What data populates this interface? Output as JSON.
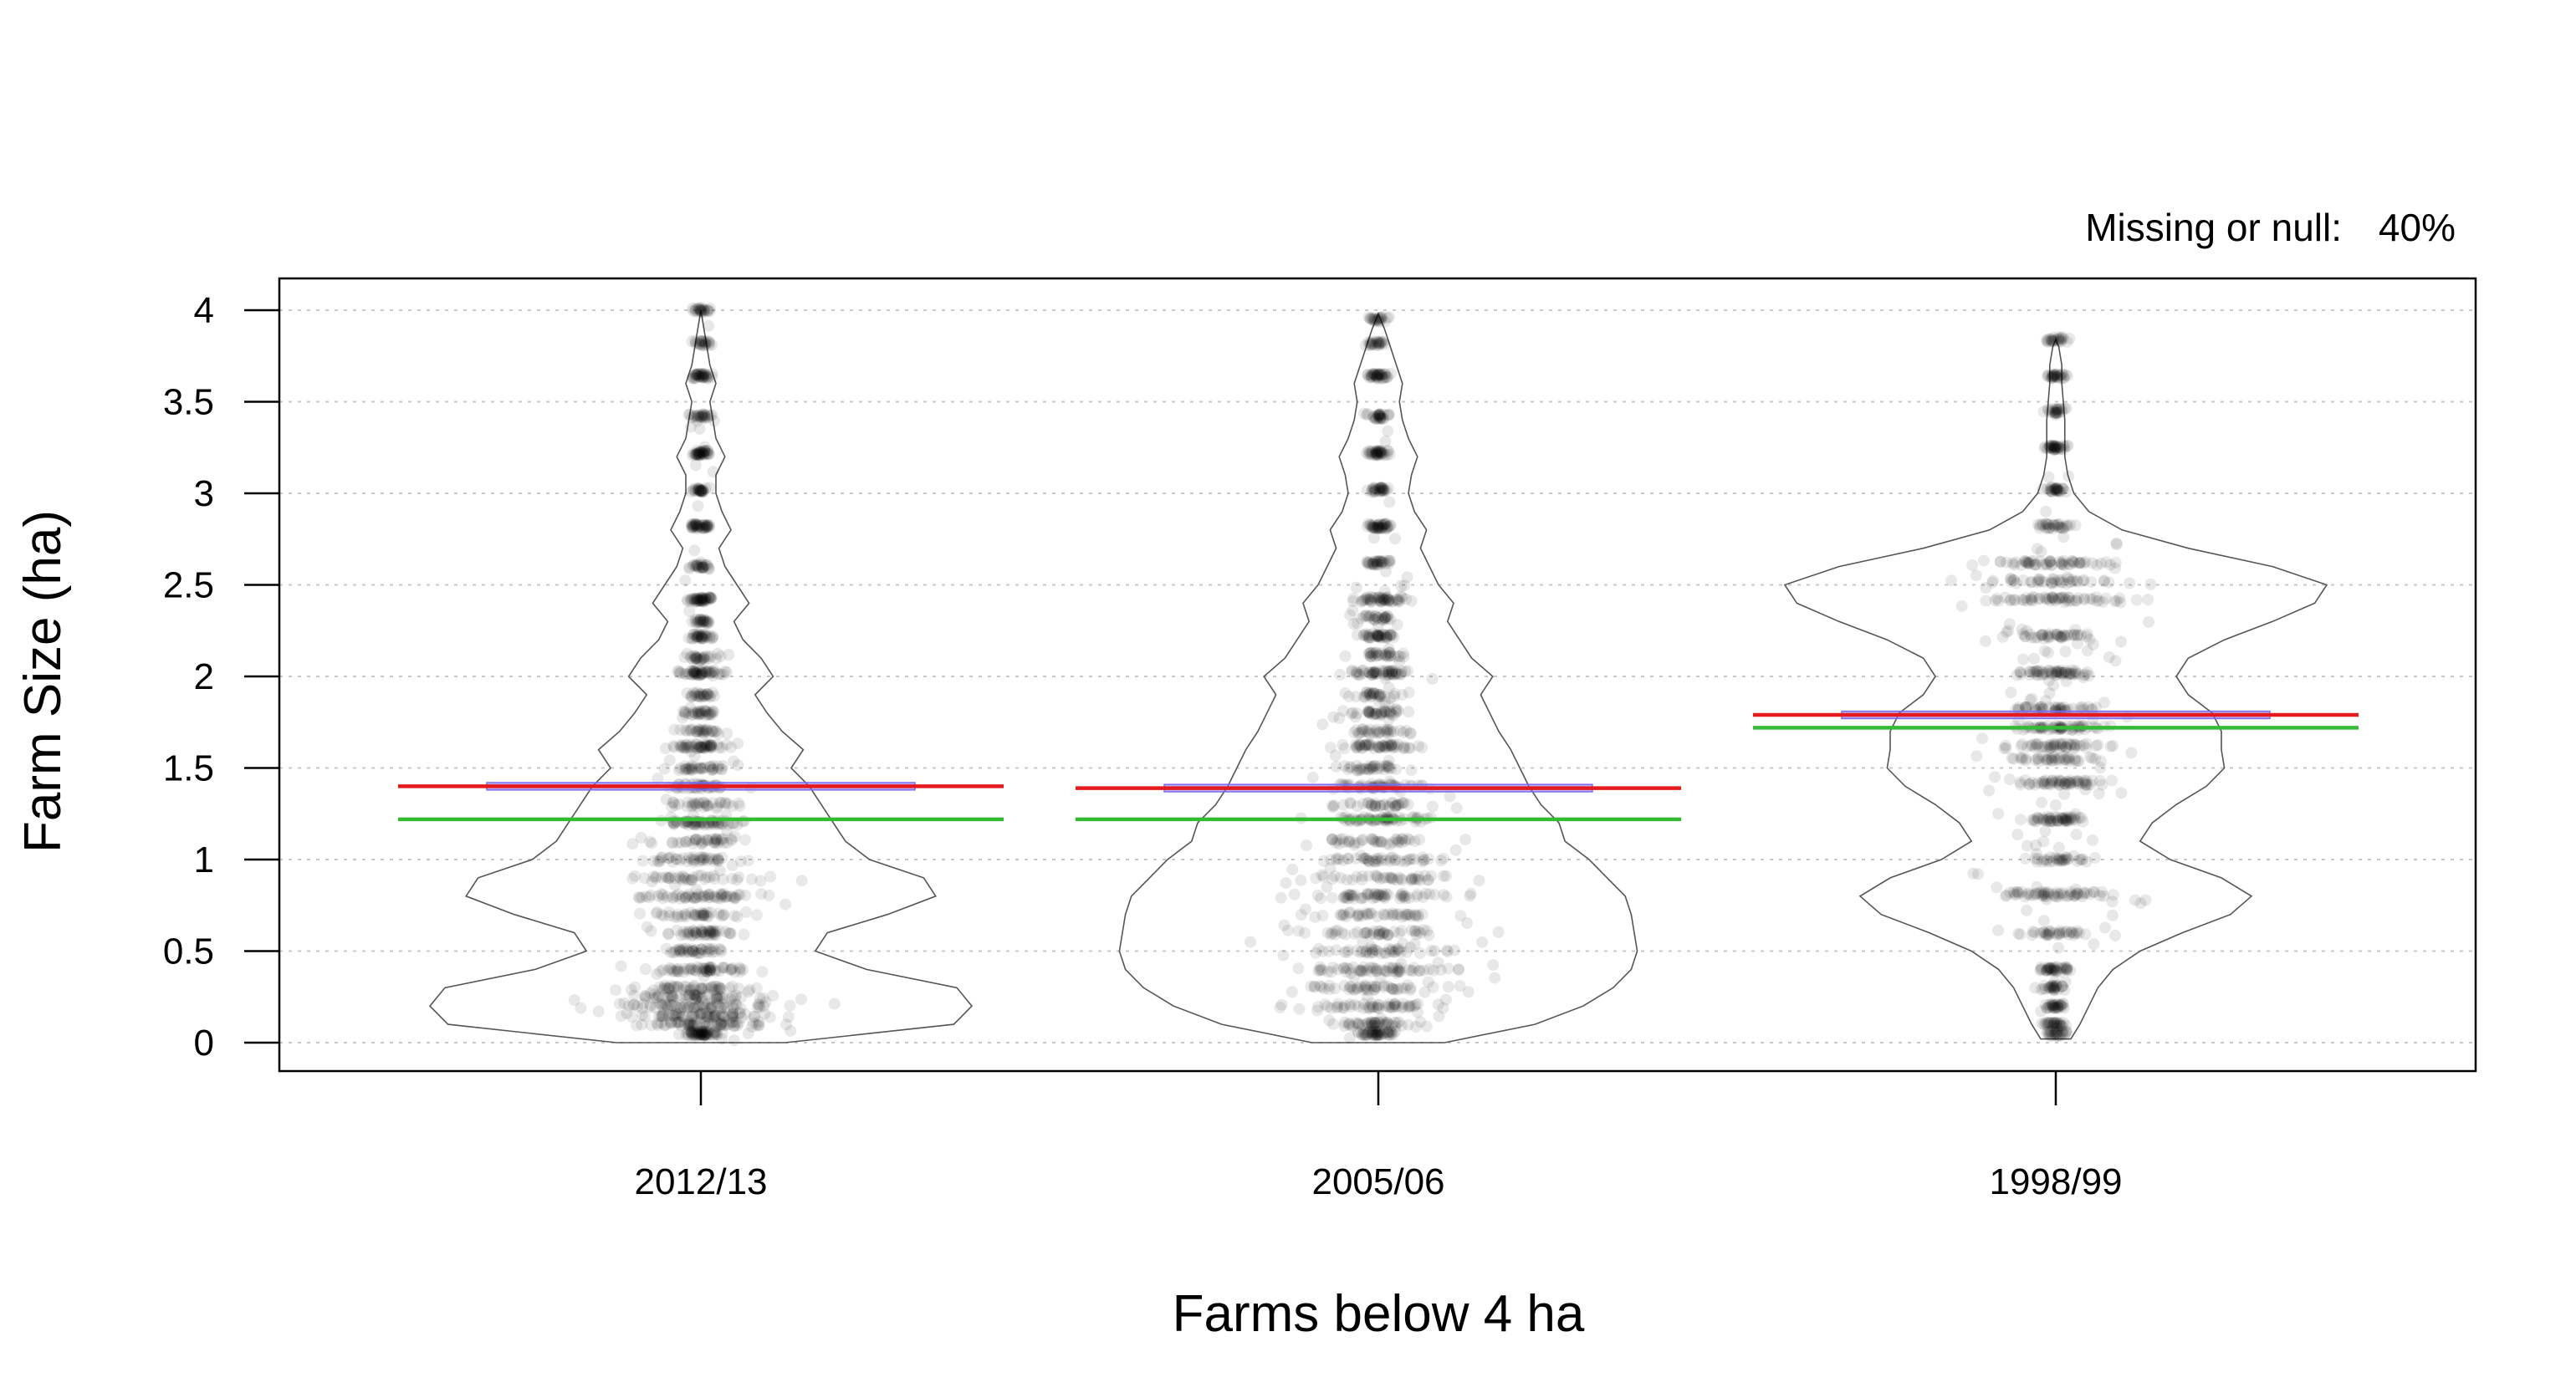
{
  "chart_data": {
    "type": "violin",
    "note": {
      "label": "Missing or null:",
      "value": "40%"
    },
    "xlabel": "Farms below 4 ha",
    "ylabel": "Farm Size (ha)",
    "ylim": [
      0,
      4
    ],
    "yticks": [
      "0",
      "0.5",
      "1",
      "1.5",
      "2",
      "2.5",
      "3",
      "3.5",
      "4"
    ],
    "grid": "horizontal-dotted",
    "categories": [
      "2012/13",
      "2005/06",
      "1998/99"
    ],
    "groups": [
      {
        "name": "2012/13",
        "mean": 1.4,
        "median": 1.22,
        "ci": [
          1.38,
          1.42
        ],
        "range": [
          0,
          4
        ],
        "density": [
          [
            0.0,
            0.28
          ],
          [
            0.1,
            0.84
          ],
          [
            0.2,
            0.9
          ],
          [
            0.3,
            0.85
          ],
          [
            0.4,
            0.55
          ],
          [
            0.5,
            0.38
          ],
          [
            0.6,
            0.42
          ],
          [
            0.7,
            0.62
          ],
          [
            0.8,
            0.78
          ],
          [
            0.9,
            0.74
          ],
          [
            1.0,
            0.56
          ],
          [
            1.1,
            0.48
          ],
          [
            1.2,
            0.44
          ],
          [
            1.3,
            0.4
          ],
          [
            1.4,
            0.36
          ],
          [
            1.5,
            0.3
          ],
          [
            1.6,
            0.34
          ],
          [
            1.7,
            0.27
          ],
          [
            1.8,
            0.22
          ],
          [
            1.9,
            0.18
          ],
          [
            2.0,
            0.24
          ],
          [
            2.1,
            0.2
          ],
          [
            2.2,
            0.14
          ],
          [
            2.3,
            0.11
          ],
          [
            2.4,
            0.16
          ],
          [
            2.5,
            0.12
          ],
          [
            2.6,
            0.08
          ],
          [
            2.7,
            0.06
          ],
          [
            2.8,
            0.1
          ],
          [
            2.9,
            0.07
          ],
          [
            3.0,
            0.05
          ],
          [
            3.1,
            0.05
          ],
          [
            3.2,
            0.08
          ],
          [
            3.3,
            0.05
          ],
          [
            3.4,
            0.04
          ],
          [
            3.5,
            0.03
          ],
          [
            3.6,
            0.05
          ],
          [
            3.7,
            0.03
          ],
          [
            3.8,
            0.02
          ],
          [
            3.9,
            0.01
          ],
          [
            4.0,
            0.0
          ]
        ],
        "points": [
          [
            0.05,
            1.0
          ],
          [
            0.1,
            1.0
          ],
          [
            0.15,
            1.0
          ],
          [
            0.2,
            0.95
          ],
          [
            0.25,
            0.8
          ],
          [
            0.3,
            0.7
          ],
          [
            0.4,
            0.9
          ],
          [
            0.5,
            0.5
          ],
          [
            0.6,
            0.6
          ],
          [
            0.7,
            0.45
          ],
          [
            0.8,
            0.85
          ],
          [
            0.9,
            0.4
          ],
          [
            1.0,
            0.5
          ],
          [
            1.1,
            0.4
          ],
          [
            1.2,
            0.8
          ],
          [
            1.3,
            0.3
          ],
          [
            1.4,
            0.5
          ],
          [
            1.5,
            0.3
          ],
          [
            1.62,
            0.75
          ],
          [
            1.7,
            0.25
          ],
          [
            1.8,
            0.25
          ],
          [
            1.9,
            0.2
          ],
          [
            2.02,
            0.75
          ],
          [
            2.1,
            0.2
          ],
          [
            2.22,
            0.35
          ],
          [
            2.3,
            0.15
          ],
          [
            2.42,
            0.7
          ],
          [
            2.6,
            0.2
          ],
          [
            2.82,
            0.55
          ],
          [
            3.02,
            0.25
          ],
          [
            3.22,
            0.5
          ],
          [
            3.42,
            0.2
          ],
          [
            3.64,
            0.45
          ],
          [
            3.82,
            0.12
          ],
          [
            4.0,
            0.15
          ]
        ]
      },
      {
        "name": "2005/06",
        "mean": 1.39,
        "median": 1.22,
        "ci": [
          1.37,
          1.41
        ],
        "range": [
          0,
          3.98
        ],
        "density": [
          [
            0.0,
            0.22
          ],
          [
            0.1,
            0.52
          ],
          [
            0.2,
            0.68
          ],
          [
            0.3,
            0.78
          ],
          [
            0.4,
            0.84
          ],
          [
            0.5,
            0.86
          ],
          [
            0.6,
            0.85
          ],
          [
            0.7,
            0.84
          ],
          [
            0.8,
            0.82
          ],
          [
            0.9,
            0.76
          ],
          [
            1.0,
            0.7
          ],
          [
            1.1,
            0.62
          ],
          [
            1.2,
            0.6
          ],
          [
            1.3,
            0.54
          ],
          [
            1.4,
            0.5
          ],
          [
            1.5,
            0.47
          ],
          [
            1.6,
            0.44
          ],
          [
            1.7,
            0.4
          ],
          [
            1.8,
            0.37
          ],
          [
            1.9,
            0.34
          ],
          [
            2.0,
            0.38
          ],
          [
            2.1,
            0.31
          ],
          [
            2.2,
            0.27
          ],
          [
            2.3,
            0.23
          ],
          [
            2.4,
            0.25
          ],
          [
            2.5,
            0.2
          ],
          [
            2.6,
            0.17
          ],
          [
            2.7,
            0.14
          ],
          [
            2.8,
            0.16
          ],
          [
            2.9,
            0.12
          ],
          [
            3.0,
            0.1
          ],
          [
            3.1,
            0.11
          ],
          [
            3.2,
            0.13
          ],
          [
            3.3,
            0.1
          ],
          [
            3.4,
            0.08
          ],
          [
            3.5,
            0.07
          ],
          [
            3.6,
            0.08
          ],
          [
            3.7,
            0.06
          ],
          [
            3.8,
            0.04
          ],
          [
            3.9,
            0.02
          ],
          [
            3.98,
            0.0
          ]
        ],
        "points": [
          [
            0.05,
            0.7
          ],
          [
            0.1,
            0.6
          ],
          [
            0.2,
            0.6
          ],
          [
            0.3,
            0.6
          ],
          [
            0.4,
            0.9
          ],
          [
            0.5,
            0.5
          ],
          [
            0.6,
            0.55
          ],
          [
            0.7,
            0.5
          ],
          [
            0.8,
            0.85
          ],
          [
            0.9,
            0.45
          ],
          [
            1.0,
            0.5
          ],
          [
            1.1,
            0.45
          ],
          [
            1.22,
            0.8
          ],
          [
            1.3,
            0.4
          ],
          [
            1.4,
            0.6
          ],
          [
            1.5,
            0.35
          ],
          [
            1.62,
            0.75
          ],
          [
            1.7,
            0.3
          ],
          [
            1.8,
            0.3
          ],
          [
            1.9,
            0.25
          ],
          [
            2.02,
            0.75
          ],
          [
            2.12,
            0.25
          ],
          [
            2.22,
            0.5
          ],
          [
            2.32,
            0.2
          ],
          [
            2.42,
            0.65
          ],
          [
            2.62,
            0.3
          ],
          [
            2.82,
            0.55
          ],
          [
            3.02,
            0.3
          ],
          [
            3.22,
            0.5
          ],
          [
            3.42,
            0.25
          ],
          [
            3.64,
            0.45
          ],
          [
            3.82,
            0.15
          ],
          [
            3.95,
            0.1
          ]
        ]
      },
      {
        "name": "1998/99",
        "mean": 1.79,
        "median": 1.72,
        "ci": [
          1.77,
          1.81
        ],
        "range": [
          0.02,
          3.84
        ],
        "density": [
          [
            0.02,
            0.05
          ],
          [
            0.1,
            0.08
          ],
          [
            0.2,
            0.11
          ],
          [
            0.3,
            0.14
          ],
          [
            0.4,
            0.19
          ],
          [
            0.5,
            0.28
          ],
          [
            0.6,
            0.42
          ],
          [
            0.7,
            0.58
          ],
          [
            0.8,
            0.65
          ],
          [
            0.9,
            0.55
          ],
          [
            1.0,
            0.38
          ],
          [
            1.1,
            0.28
          ],
          [
            1.2,
            0.32
          ],
          [
            1.3,
            0.4
          ],
          [
            1.4,
            0.5
          ],
          [
            1.5,
            0.56
          ],
          [
            1.6,
            0.55
          ],
          [
            1.7,
            0.55
          ],
          [
            1.8,
            0.52
          ],
          [
            1.9,
            0.44
          ],
          [
            2.0,
            0.4
          ],
          [
            2.1,
            0.44
          ],
          [
            2.2,
            0.56
          ],
          [
            2.3,
            0.72
          ],
          [
            2.4,
            0.86
          ],
          [
            2.5,
            0.9
          ],
          [
            2.6,
            0.72
          ],
          [
            2.7,
            0.44
          ],
          [
            2.8,
            0.22
          ],
          [
            2.9,
            0.11
          ],
          [
            3.0,
            0.06
          ],
          [
            3.1,
            0.04
          ],
          [
            3.2,
            0.03
          ],
          [
            3.3,
            0.03
          ],
          [
            3.4,
            0.03
          ],
          [
            3.5,
            0.025
          ],
          [
            3.6,
            0.02
          ],
          [
            3.7,
            0.02
          ],
          [
            3.8,
            0.01
          ],
          [
            3.84,
            0.0
          ]
        ],
        "points": [
          [
            0.05,
            0.2
          ],
          [
            0.1,
            0.25
          ],
          [
            0.2,
            0.3
          ],
          [
            0.3,
            0.2
          ],
          [
            0.4,
            0.45
          ],
          [
            0.6,
            0.3
          ],
          [
            0.81,
            0.85
          ],
          [
            1.0,
            0.3
          ],
          [
            1.22,
            0.75
          ],
          [
            1.42,
            0.85
          ],
          [
            1.55,
            0.45
          ],
          [
            1.62,
            0.7
          ],
          [
            1.72,
            0.8
          ],
          [
            1.82,
            0.6
          ],
          [
            2.02,
            0.8
          ],
          [
            2.22,
            0.45
          ],
          [
            2.42,
            0.9
          ],
          [
            2.52,
            0.5
          ],
          [
            2.62,
            0.85
          ],
          [
            2.82,
            0.25
          ],
          [
            3.02,
            0.25
          ],
          [
            3.25,
            0.45
          ],
          [
            3.45,
            0.15
          ],
          [
            3.64,
            0.25
          ],
          [
            3.84,
            0.15
          ]
        ]
      }
    ],
    "colors": {
      "mean": "#e41a1c",
      "median": "#33bb33",
      "ci": "#7b68ee",
      "points": "#000000",
      "violin": "#555555"
    }
  }
}
